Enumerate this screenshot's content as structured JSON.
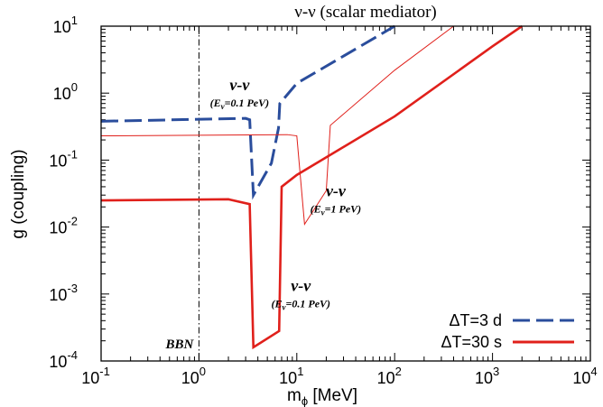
{
  "chart_data": {
    "type": "line",
    "title": "ν-ν (scalar mediator)",
    "xlabel": "m",
    "xlabel_sub": "ϕ",
    "xlabel_unit": " [MeV]",
    "ylabel": "g (coupling)",
    "xscale": "log",
    "yscale": "log",
    "xlim": [
      0.1,
      10000
    ],
    "ylim": [
      0.0001,
      10
    ],
    "x_ticks": [
      {
        "value": 0.1,
        "base": "10",
        "exp": "-1"
      },
      {
        "value": 1,
        "base": "10",
        "exp": "0"
      },
      {
        "value": 10,
        "base": "10",
        "exp": "1"
      },
      {
        "value": 100,
        "base": "10",
        "exp": "2"
      },
      {
        "value": 1000,
        "base": "10",
        "exp": "3"
      },
      {
        "value": 10000,
        "base": "10",
        "exp": "4"
      }
    ],
    "y_ticks": [
      {
        "value": 0.0001,
        "base": "10",
        "exp": "-4"
      },
      {
        "value": 0.001,
        "base": "10",
        "exp": "-3"
      },
      {
        "value": 0.01,
        "base": "10",
        "exp": "-2"
      },
      {
        "value": 0.1,
        "base": "10",
        "exp": "-1"
      },
      {
        "value": 1,
        "base": "10",
        "exp": "0"
      },
      {
        "value": 10,
        "base": "10",
        "exp": "1"
      }
    ],
    "legend_position": "bottom-right",
    "series": [
      {
        "name": "ΔT=3 d",
        "color": "#2a4d9c",
        "style": "dashed",
        "points": [
          [
            0.1,
            0.38
          ],
          [
            3.0,
            0.42
          ],
          [
            3.3,
            0.4
          ],
          [
            3.6,
            0.03
          ],
          [
            5.5,
            0.09
          ],
          [
            6.5,
            0.3
          ],
          [
            6.7,
            0.7
          ],
          [
            10,
            1.4
          ],
          [
            100,
            10
          ]
        ]
      },
      {
        "name": "ΔT=30 s",
        "color": "#e0201b",
        "style": "solid",
        "points": [
          [
            0.1,
            0.025
          ],
          [
            2.0,
            0.026
          ],
          [
            3.3,
            0.022
          ],
          [
            3.6,
            0.00016
          ],
          [
            6.6,
            0.00028
          ],
          [
            7.0,
            0.04
          ],
          [
            10,
            0.06
          ],
          [
            100,
            0.45
          ],
          [
            1000,
            5
          ],
          [
            2000,
            10
          ]
        ]
      },
      {
        "color": "#e0201b",
        "style": "thin",
        "points": [
          [
            0.1,
            0.23
          ],
          [
            8,
            0.24
          ],
          [
            10,
            0.23
          ],
          [
            12,
            0.011
          ],
          [
            20,
            0.035
          ],
          [
            22,
            0.33
          ],
          [
            100,
            2.2
          ],
          [
            400,
            10
          ]
        ]
      }
    ],
    "reference_line": {
      "label": "BBN",
      "x": 1.0,
      "color": "#000000",
      "style": "dashdot"
    },
    "annotations": [
      {
        "text": "ν-ν",
        "sub": "(E",
        "sub2": "ν",
        "sub3": "=0.1 PeV)",
        "color": "#2a4d9c",
        "x": 2.6,
        "y": 1.1
      },
      {
        "text": "ν-ν",
        "sub": "(E",
        "sub2": "ν",
        "sub3": "=1 PeV)",
        "color": "#e0201b",
        "x": 25,
        "y": 0.029
      },
      {
        "text": "ν-ν",
        "sub": "(E",
        "sub2": "ν",
        "sub3": "=0.1 PeV)",
        "color": "#e0201b",
        "x": 11,
        "y": 0.0011
      }
    ]
  }
}
